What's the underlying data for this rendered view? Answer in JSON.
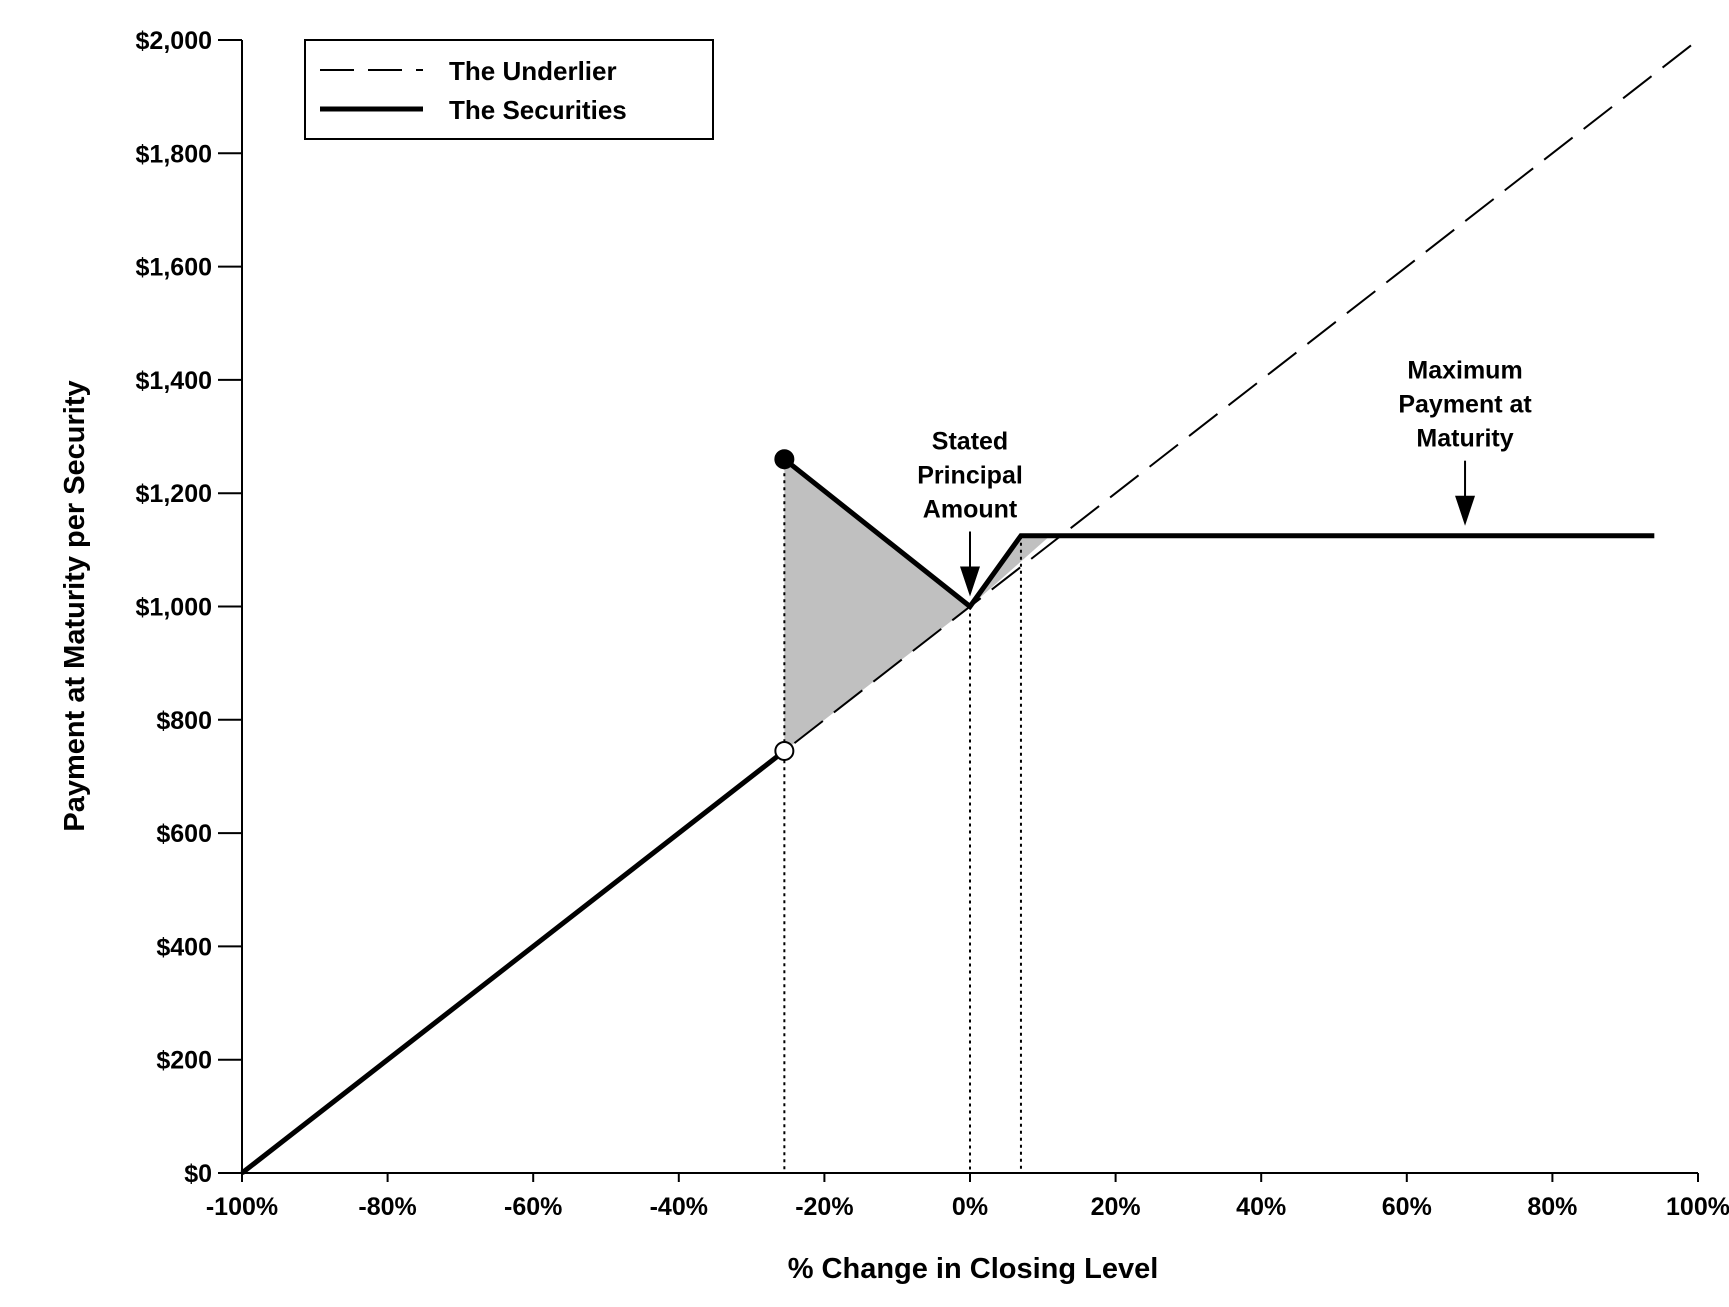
{
  "chart_data": {
    "type": "line",
    "xlabel": "% Change in Closing Level",
    "ylabel": "Payment at Maturity per Security",
    "xlim": [
      -100,
      100
    ],
    "ylim": [
      0,
      2000
    ],
    "x_ticks": [
      -100,
      -80,
      -60,
      -40,
      -20,
      0,
      20,
      40,
      60,
      80,
      100
    ],
    "x_tick_labels": [
      "-100%",
      "-80%",
      "-60%",
      "-40%",
      "-20%",
      "0%",
      "20%",
      "40%",
      "60%",
      "80%",
      "100%"
    ],
    "y_ticks": [
      0,
      200,
      400,
      600,
      800,
      1000,
      1200,
      1400,
      1600,
      1800,
      2000
    ],
    "y_tick_labels": [
      "$0",
      "$200",
      "$400",
      "$600",
      "$800",
      "$1,000",
      "$1,200",
      "$1,400",
      "$1,600",
      "$1,800",
      "$2,000"
    ],
    "legend_position": "top-left",
    "grid": false,
    "series": [
      {
        "name": "The Underlier",
        "style": "dashed",
        "points": [
          [
            -100,
            0
          ],
          [
            100,
            2000
          ]
        ]
      },
      {
        "name": "The Securities",
        "style": "solid",
        "segments": [
          [
            [
              -100,
              0
            ],
            [
              -25.5,
              745
            ]
          ],
          [
            [
              -25.5,
              1260
            ],
            [
              0,
              1000
            ],
            [
              7,
              1125
            ],
            [
              94,
              1125
            ]
          ]
        ]
      }
    ],
    "markers": [
      {
        "kind": "closed",
        "x": -25.5,
        "y": 1260
      },
      {
        "kind": "open",
        "x": -25.5,
        "y": 745
      }
    ],
    "reference_lines_x": [
      -25.5,
      0,
      7
    ],
    "shaded_regions": [
      [
        [
          -25.5,
          1260
        ],
        [
          0,
          1000
        ],
        [
          -25.5,
          745
        ]
      ],
      [
        [
          0,
          1000
        ],
        [
          7,
          1125
        ],
        [
          11,
          1125
        ]
      ]
    ],
    "annotations": [
      {
        "lines": [
          "Stated",
          "Principal",
          "Amount"
        ],
        "x": 0,
        "y": 1000
      },
      {
        "lines": [
          "Maximum",
          "Payment at",
          "Maturity"
        ],
        "x": 68,
        "y": 1125
      }
    ],
    "colors": {
      "line": "#000000",
      "shade": "#c0c0c0",
      "background": "#ffffff"
    }
  }
}
